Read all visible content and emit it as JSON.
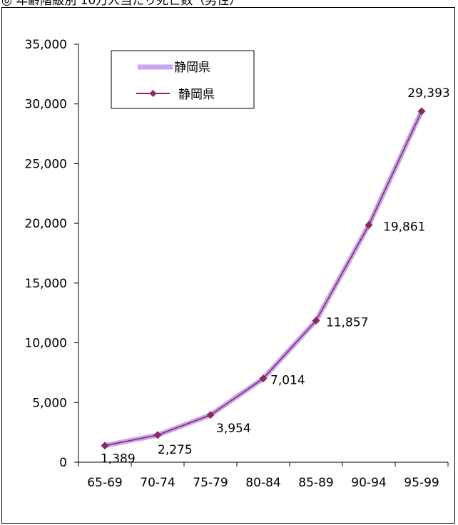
{
  "title": "◎ 年齢階級別 10万人当たり死亡数（男性）",
  "chart_data": {
    "type": "line",
    "categories": [
      "65-69",
      "70-74",
      "75-79",
      "80-84",
      "85-89",
      "90-94",
      "95-99"
    ],
    "series": [
      {
        "name": "静岡県",
        "values": [
          1389,
          2275,
          3954,
          7014,
          11857,
          19861,
          29393
        ],
        "data_labels": [
          "1,389",
          "2,275",
          "3,954",
          "7,014",
          "11,857",
          "19,861",
          "29,393"
        ]
      }
    ],
    "yticks": [
      "0",
      "5,000",
      "10,000",
      "15,000",
      "20,000",
      "25,000",
      "30,000",
      "35,000"
    ],
    "ylim": [
      0,
      35000
    ],
    "legend": {
      "placement": "top-left",
      "entries": [
        {
          "label": "静岡県",
          "style": "thick-line"
        },
        {
          "label": "静岡県",
          "style": "line-with-diamond"
        }
      ]
    },
    "colors": {
      "thick_line": "#c8a6f2",
      "marker_line": "#8b2a5c"
    },
    "grid": false
  }
}
